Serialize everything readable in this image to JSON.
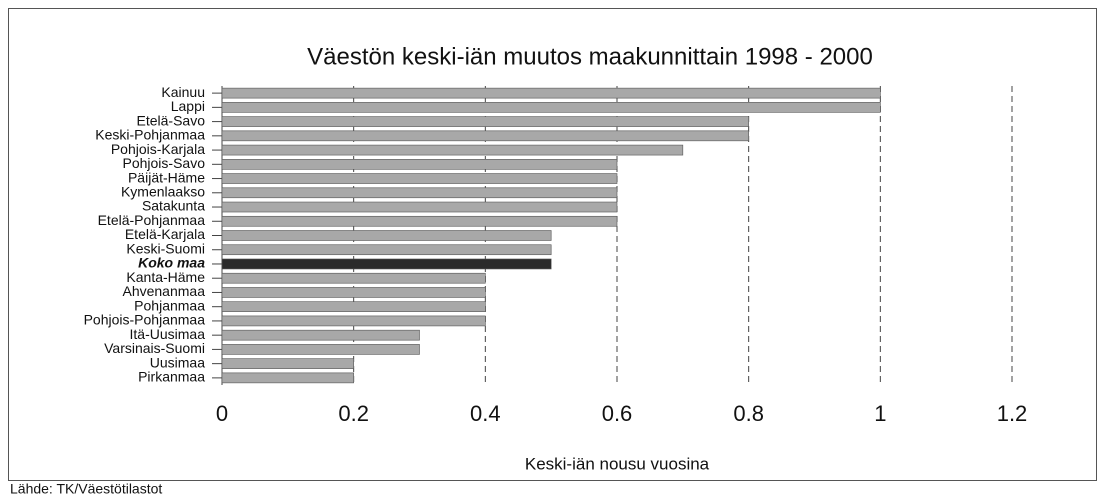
{
  "chart_data": {
    "type": "barh",
    "title": "Väestön keski-iän muutos maakunnittain 1998 - 2000",
    "xlabel": "Keski-iän nousu vuosina",
    "source": "Lähde: TK/Väestötilastot",
    "categories": [
      "Kainuu",
      "Lappi",
      "Etelä-Savo",
      "Keski-Pohjanmaa",
      "Pohjois-Karjala",
      "Pohjois-Savo",
      "Päijät-Häme",
      "Kymenlaakso",
      "Satakunta",
      "Etelä-Pohjanmaa",
      "Etelä-Karjala",
      "Keski-Suomi",
      "Koko maa",
      "Kanta-Häme",
      "Ahvenanmaa",
      "Pohjanmaa",
      "Pohjois-Pohjanmaa",
      "Itä-Uusimaa",
      "Varsinais-Suomi",
      "Uusimaa",
      "Pirkanmaa"
    ],
    "values": [
      1.0,
      1.0,
      0.8,
      0.8,
      0.7,
      0.6,
      0.6,
      0.6,
      0.6,
      0.6,
      0.5,
      0.5,
      0.5,
      0.4,
      0.4,
      0.4,
      0.4,
      0.3,
      0.3,
      0.2,
      0.2
    ],
    "colors": [
      "#a8a8a8",
      "#a8a8a8",
      "#a8a8a8",
      "#a8a8a8",
      "#a8a8a8",
      "#a8a8a8",
      "#a8a8a8",
      "#a8a8a8",
      "#a8a8a8",
      "#a8a8a8",
      "#a8a8a8",
      "#a8a8a8",
      "#2a2a2a",
      "#a8a8a8",
      "#a8a8a8",
      "#a8a8a8",
      "#a8a8a8",
      "#a8a8a8",
      "#a8a8a8",
      "#a8a8a8",
      "#a8a8a8"
    ],
    "xlim": [
      0,
      1.2
    ],
    "xticks": [
      0,
      0.2,
      0.4,
      0.6,
      0.8,
      1,
      1.2
    ],
    "grid": true
  }
}
